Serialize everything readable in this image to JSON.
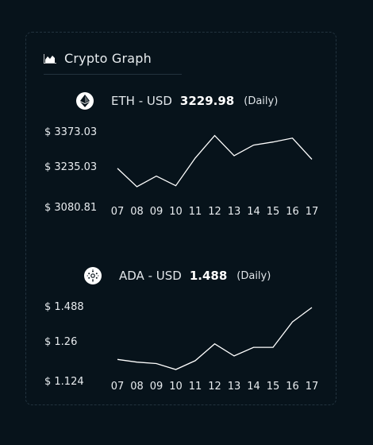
{
  "header": {
    "title": "Crypto Graph",
    "icon": "area-chart-icon"
  },
  "chart_data": [
    {
      "type": "line",
      "coin_icon": "ethereum-icon",
      "pair": "ETH - USD",
      "price": "3229.98",
      "period": "(Daily)",
      "y_labels": [
        "$ 3373.03",
        "$ 3235.03",
        "$ 3080.81"
      ],
      "ylim": [
        3080.81,
        3373.03
      ],
      "categories": [
        "07",
        "08",
        "09",
        "10",
        "11",
        "12",
        "13",
        "14",
        "15",
        "16",
        "17"
      ],
      "values": [
        3235,
        3164,
        3205,
        3168,
        3275,
        3362,
        3284,
        3325,
        3337,
        3352,
        3270
      ],
      "line_color": "#ffffff"
    },
    {
      "type": "line",
      "coin_icon": "cardano-icon",
      "pair": "ADA - USD",
      "price": "1.488",
      "period": "(Daily)",
      "y_labels": [
        "$ 1.488",
        "$ 1.26",
        "$ 1.124"
      ],
      "ylim": [
        1.124,
        1.488
      ],
      "categories": [
        "07",
        "08",
        "09",
        "10",
        "11",
        "12",
        "13",
        "14",
        "15",
        "16",
        "17"
      ],
      "values": [
        1.235,
        1.222,
        1.215,
        1.186,
        1.229,
        1.311,
        1.252,
        1.294,
        1.294,
        1.418,
        1.488
      ],
      "line_color": "#ffffff"
    }
  ]
}
